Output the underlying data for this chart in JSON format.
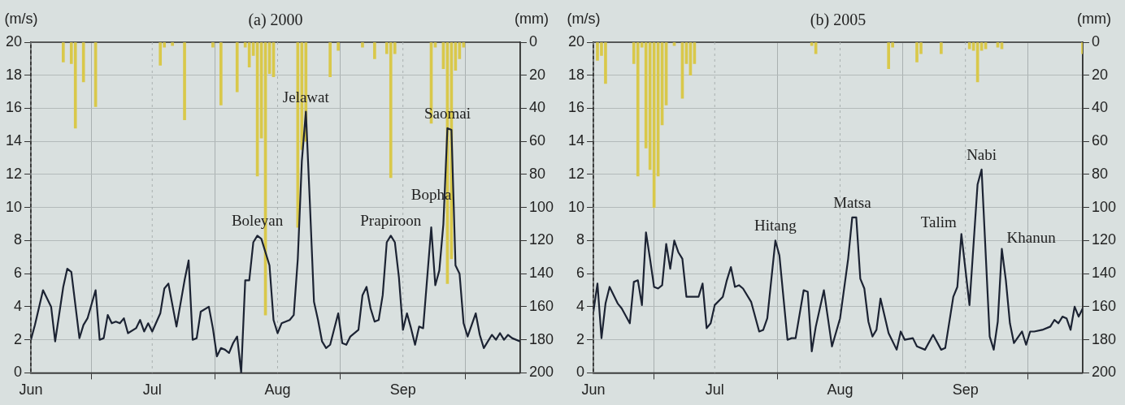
{
  "chart_data": [
    {
      "type": "line",
      "title": "(a) 2000",
      "ylabel": "(m/s)",
      "y2label": "(mm)",
      "xlim": [
        "2000-06-01",
        "2000-09-30"
      ],
      "xticks": [
        {
          "value": "2000-06-01",
          "label": "Jun"
        },
        {
          "value": "2000-07-01",
          "label": "Jul"
        },
        {
          "value": "2000-08-01",
          "label": "Aug"
        },
        {
          "value": "2000-09-01",
          "label": "Sep"
        }
      ],
      "ylim": [
        0,
        20
      ],
      "yticks": [
        0,
        2,
        4,
        6,
        8,
        10,
        12,
        14,
        16,
        18,
        20
      ],
      "y2lim": [
        200,
        0
      ],
      "y2ticks": [
        0,
        20,
        40,
        60,
        80,
        100,
        120,
        140,
        160,
        180,
        200
      ],
      "grid": true,
      "marker": "none",
      "line_style": "solid",
      "series": [
        {
          "color": "#1c2333",
          "x": [
            "2000-06-01",
            "2000-06-02",
            "2000-06-04",
            "2000-06-06",
            "2000-06-07",
            "2000-06-09",
            "2000-06-10",
            "2000-06-11",
            "2000-06-13",
            "2000-06-14",
            "2000-06-15",
            "2000-06-17",
            "2000-06-18",
            "2000-06-19",
            "2000-06-20",
            "2000-06-21",
            "2000-06-22",
            "2000-06-23",
            "2000-06-24",
            "2000-06-25",
            "2000-06-27",
            "2000-06-28",
            "2000-06-29",
            "2000-06-30",
            "2000-07-01",
            "2000-07-03",
            "2000-07-04",
            "2000-07-05",
            "2000-07-06",
            "2000-07-07",
            "2000-07-09",
            "2000-07-10",
            "2000-07-11",
            "2000-07-12",
            "2000-07-13",
            "2000-07-15",
            "2000-07-16",
            "2000-07-17",
            "2000-07-18",
            "2000-07-19",
            "2000-07-20",
            "2000-07-21",
            "2000-07-22",
            "2000-07-23",
            "2000-07-24",
            "2000-07-25",
            "2000-07-26",
            "2000-07-27",
            "2000-07-28",
            "2000-07-29",
            "2000-07-30",
            "2000-07-31",
            "2000-08-01",
            "2000-08-02",
            "2000-08-04",
            "2000-08-05",
            "2000-08-06",
            "2000-08-07",
            "2000-08-08",
            "2000-08-09",
            "2000-08-10",
            "2000-08-11",
            "2000-08-12",
            "2000-08-13",
            "2000-08-14",
            "2000-08-16",
            "2000-08-17",
            "2000-08-18",
            "2000-08-19",
            "2000-08-21",
            "2000-08-22",
            "2000-08-23",
            "2000-08-24",
            "2000-08-25",
            "2000-08-26",
            "2000-08-27",
            "2000-08-28",
            "2000-08-29",
            "2000-08-30",
            "2000-08-31",
            "2000-09-01",
            "2000-09-02",
            "2000-09-03",
            "2000-09-04",
            "2000-09-05",
            "2000-09-06",
            "2000-09-08",
            "2000-09-09",
            "2000-09-10",
            "2000-09-11",
            "2000-09-12",
            "2000-09-13",
            "2000-09-14",
            "2000-09-15",
            "2000-09-16",
            "2000-09-17",
            "2000-09-19",
            "2000-09-20",
            "2000-09-21",
            "2000-09-23",
            "2000-09-24",
            "2000-09-25",
            "2000-09-26",
            "2000-09-27",
            "2000-09-28",
            "2000-09-30"
          ],
          "values": [
            2.0,
            2.9,
            5.0,
            4.0,
            1.9,
            5.2,
            6.3,
            6.1,
            2.1,
            2.9,
            3.3,
            5.0,
            2.0,
            2.1,
            3.5,
            3.0,
            3.1,
            3.0,
            3.3,
            2.4,
            2.7,
            3.2,
            2.5,
            3.0,
            2.5,
            3.6,
            5.1,
            5.4,
            4.1,
            2.8,
            5.6,
            6.8,
            2.0,
            2.1,
            3.7,
            4.0,
            2.7,
            1.0,
            1.5,
            1.4,
            1.2,
            1.8,
            2.2,
            0,
            5.6,
            5.6,
            7.9,
            8.3,
            8.1,
            7.3,
            6.5,
            3.2,
            2.4,
            3.0,
            3.2,
            3.5,
            6.9,
            12.8,
            15.8,
            10.2,
            4.3,
            3.2,
            1.9,
            1.5,
            1.7,
            3.6,
            1.8,
            1.7,
            2.2,
            2.6,
            4.7,
            5.2,
            3.9,
            3.1,
            3.2,
            4.7,
            7.9,
            8.3,
            7.9,
            5.8,
            2.6,
            3.6,
            2.7,
            1.7,
            2.8,
            2.7,
            8.8,
            5.3,
            6.2,
            9.0,
            14.8,
            14.7,
            6.5,
            6.0,
            3.0,
            2.2,
            3.6,
            2.3,
            1.5,
            2.3,
            2.0,
            2.4,
            2.0,
            2.3,
            2.1,
            1.9
          ]
        },
        {
          "type": "bar",
          "axis": "y2",
          "color": "#d9c84a",
          "x": [
            "2000-06-09",
            "2000-06-11",
            "2000-06-12",
            "2000-06-14",
            "2000-06-17",
            "2000-07-03",
            "2000-07-04",
            "2000-07-06",
            "2000-07-09",
            "2000-07-16",
            "2000-07-18",
            "2000-07-22",
            "2000-07-24",
            "2000-07-25",
            "2000-07-26",
            "2000-07-27",
            "2000-07-28",
            "2000-07-29",
            "2000-07-30",
            "2000-07-31",
            "2000-08-06",
            "2000-08-07",
            "2000-08-08",
            "2000-08-14",
            "2000-08-16",
            "2000-08-22",
            "2000-08-25",
            "2000-08-28",
            "2000-08-29",
            "2000-08-30",
            "2000-09-08",
            "2000-09-09",
            "2000-09-11",
            "2000-09-12",
            "2000-09-13",
            "2000-09-14",
            "2000-09-15",
            "2000-09-16"
          ],
          "values": [
            12,
            13,
            52,
            24,
            39,
            14,
            3,
            2,
            47,
            3,
            38,
            30,
            3,
            15,
            8,
            81,
            58,
            165,
            19,
            21,
            112,
            65,
            60,
            21,
            5,
            3,
            10,
            7,
            82,
            7,
            49,
            3,
            16,
            146,
            131,
            17,
            10,
            3
          ]
        }
      ],
      "annotations": [
        {
          "text": "Boleyan",
          "x": "2000-07-27",
          "y": 8.3
        },
        {
          "text": "Jelawat",
          "x": "2000-08-08",
          "y": 15.8
        },
        {
          "text": "Prapiroon",
          "x": "2000-08-29",
          "y": 8.3
        },
        {
          "text": "Bopha",
          "x": "2000-09-08",
          "y": 8.8
        },
        {
          "text": "Saomai",
          "x": "2000-09-12",
          "y": 14.8
        }
      ]
    },
    {
      "type": "line",
      "title": "(b) 2005",
      "ylabel": "(m/s)",
      "y2label": "(mm)",
      "xlim": [
        "2005-06-01",
        "2005-09-30"
      ],
      "xticks": [
        {
          "value": "2005-06-01",
          "label": "Jun"
        },
        {
          "value": "2005-07-01",
          "label": "Jul"
        },
        {
          "value": "2005-08-01",
          "label": "Aug"
        },
        {
          "value": "2005-09-01",
          "label": "Sep"
        }
      ],
      "ylim": [
        0,
        20
      ],
      "yticks": [
        0,
        2,
        4,
        6,
        8,
        10,
        12,
        14,
        16,
        18,
        20
      ],
      "y2lim": [
        200,
        0
      ],
      "y2ticks": [
        0,
        20,
        40,
        60,
        80,
        100,
        120,
        140,
        160,
        180,
        200
      ],
      "grid": true,
      "marker": "none",
      "line_style": "solid",
      "series": [
        {
          "color": "#1c2333",
          "x": [
            "2005-06-01",
            "2005-06-02",
            "2005-06-03",
            "2005-06-04",
            "2005-06-05",
            "2005-06-07",
            "2005-06-08",
            "2005-06-10",
            "2005-06-11",
            "2005-06-12",
            "2005-06-13",
            "2005-06-14",
            "2005-06-15",
            "2005-06-16",
            "2005-06-17",
            "2005-06-18",
            "2005-06-19",
            "2005-06-20",
            "2005-06-21",
            "2005-06-22",
            "2005-06-23",
            "2005-06-24",
            "2005-06-25",
            "2005-06-27",
            "2005-06-28",
            "2005-06-29",
            "2005-06-30",
            "2005-07-01",
            "2005-07-03",
            "2005-07-04",
            "2005-07-05",
            "2005-07-06",
            "2005-07-07",
            "2005-07-08",
            "2005-07-10",
            "2005-07-12",
            "2005-07-13",
            "2005-07-14",
            "2005-07-16",
            "2005-07-17",
            "2005-07-19",
            "2005-07-20",
            "2005-07-21",
            "2005-07-23",
            "2005-07-24",
            "2005-07-25",
            "2005-07-26",
            "2005-07-28",
            "2005-07-30",
            "2005-08-01",
            "2005-08-03",
            "2005-08-04",
            "2005-08-05",
            "2005-08-06",
            "2005-08-07",
            "2005-08-08",
            "2005-08-09",
            "2005-08-10",
            "2005-08-11",
            "2005-08-13",
            "2005-08-15",
            "2005-08-16",
            "2005-08-17",
            "2005-08-19",
            "2005-08-20",
            "2005-08-22",
            "2005-08-24",
            "2005-08-26",
            "2005-08-27",
            "2005-08-29",
            "2005-08-30",
            "2005-08-31",
            "2005-09-02",
            "2005-09-04",
            "2005-09-05",
            "2005-09-07",
            "2005-09-08",
            "2005-09-09",
            "2005-09-10",
            "2005-09-11",
            "2005-09-12",
            "2005-09-13",
            "2005-09-15",
            "2005-09-16",
            "2005-09-17",
            "2005-09-18",
            "2005-09-20",
            "2005-09-22",
            "2005-09-23",
            "2005-09-24",
            "2005-09-25",
            "2005-09-26",
            "2005-09-27",
            "2005-09-28",
            "2005-09-29",
            "2005-09-30"
          ],
          "values": [
            3.7,
            5.4,
            2.1,
            4.2,
            5.2,
            4.2,
            3.9,
            3.0,
            5.5,
            5.6,
            4.1,
            8.5,
            6.9,
            5.2,
            5.1,
            5.3,
            7.8,
            6.3,
            8.0,
            7.3,
            6.9,
            4.6,
            4.6,
            4.6,
            5.4,
            2.7,
            3.0,
            4.1,
            4.6,
            5.6,
            6.4,
            5.2,
            5.3,
            5.1,
            4.3,
            2.5,
            2.6,
            3.3,
            8.0,
            7.1,
            2.0,
            2.1,
            2.1,
            5.0,
            4.9,
            1.3,
            2.8,
            5.0,
            1.6,
            3.3,
            6.9,
            9.4,
            9.4,
            5.7,
            5.1,
            3.1,
            2.2,
            2.6,
            4.5,
            2.4,
            1.4,
            2.5,
            2.0,
            2.1,
            1.6,
            1.4,
            2.3,
            1.4,
            1.5,
            4.6,
            5.2,
            8.4,
            4.1,
            11.4,
            12.3,
            2.2,
            1.4,
            3.1,
            7.5,
            5.6,
            3.0,
            1.8,
            2.5,
            1.7,
            2.5,
            2.5,
            2.6,
            2.8,
            3.2,
            3.0,
            3.4,
            3.3,
            2.6,
            4.0,
            3.4,
            3.9
          ]
        },
        {
          "type": "bar",
          "axis": "y2",
          "color": "#d9c84a",
          "x": [
            "2005-06-02",
            "2005-06-03",
            "2005-06-04",
            "2005-06-11",
            "2005-06-12",
            "2005-06-13",
            "2005-06-14",
            "2005-06-15",
            "2005-06-16",
            "2005-06-17",
            "2005-06-18",
            "2005-06-19",
            "2005-06-21",
            "2005-06-23",
            "2005-06-24",
            "2005-06-25",
            "2005-06-26",
            "2005-07-25",
            "2005-07-26",
            "2005-08-13",
            "2005-08-14",
            "2005-08-20",
            "2005-08-21",
            "2005-08-26",
            "2005-09-02",
            "2005-09-03",
            "2005-09-04",
            "2005-09-05",
            "2005-09-06",
            "2005-09-09",
            "2005-09-10",
            "2005-09-30"
          ],
          "values": [
            11,
            8,
            25,
            13,
            81,
            3,
            64,
            77,
            100,
            81,
            50,
            38,
            2,
            34,
            13,
            20,
            13,
            2,
            7,
            16,
            3,
            12,
            7,
            7,
            4,
            5,
            24,
            5,
            4,
            3,
            4,
            7
          ]
        }
      ],
      "annotations": [
        {
          "text": "Hitang",
          "x": "2005-07-16",
          "y": 8.0
        },
        {
          "text": "Matsa",
          "x": "2005-08-04",
          "y": 9.4
        },
        {
          "text": "Talim",
          "x": "2005-08-31",
          "y": 8.4
        },
        {
          "text": "Nabi",
          "x": "2005-09-05",
          "y": 12.3
        },
        {
          "text": "Khanun",
          "x": "2005-09-10",
          "y": 7.5
        }
      ]
    }
  ]
}
